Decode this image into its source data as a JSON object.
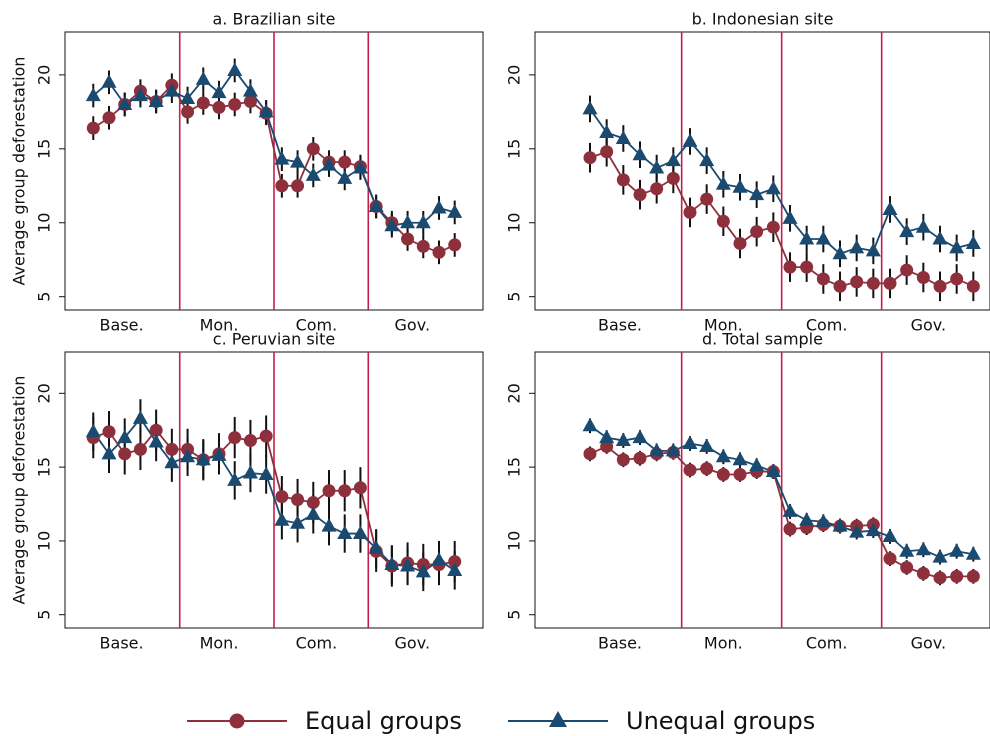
{
  "chart_data": [
    {
      "type": "line",
      "title": "a. Brazilian site",
      "ylabel": "Average group deforestation",
      "x": [
        1,
        2,
        3,
        4,
        5,
        6,
        7,
        8,
        9,
        10,
        11,
        12,
        13,
        14,
        15,
        16,
        17,
        18,
        19,
        20,
        21,
        22,
        23,
        24
      ],
      "xlim": [
        -0.8,
        25.8
      ],
      "xticks": [
        {
          "value": 2.8,
          "label": "Base."
        },
        {
          "value": 9,
          "label": "Mon."
        },
        {
          "value": 15.2,
          "label": "Com."
        },
        {
          "value": 21.3,
          "label": "Gov."
        }
      ],
      "ylim": [
        4.1,
        22.9
      ],
      "yticks": [
        5,
        10,
        15,
        20
      ],
      "vlines": [
        6.5,
        12.5,
        18.5
      ],
      "vline_color": "#c41e4a",
      "series": [
        {
          "name": "Equal groups",
          "color": "#8e2f3c",
          "marker": "circle",
          "error": 0.8,
          "values": [
            16.4,
            17.1,
            18.0,
            18.9,
            18.2,
            19.3,
            17.5,
            18.1,
            17.8,
            18.0,
            18.2,
            17.4,
            12.5,
            12.5,
            15.0,
            14.1,
            14.1,
            13.8,
            11.1,
            10.0,
            8.9,
            8.4,
            8.0,
            8.5
          ]
        },
        {
          "name": "Unequal groups",
          "color": "#1b4a70",
          "marker": "triangle",
          "error": 0.8,
          "values": [
            18.6,
            19.5,
            18.0,
            18.6,
            18.2,
            18.9,
            18.4,
            19.7,
            18.8,
            20.3,
            18.9,
            17.5,
            14.3,
            14.1,
            13.2,
            13.9,
            13.0,
            13.7,
            11.1,
            9.8,
            10.0,
            10.0,
            11.0,
            10.7
          ]
        }
      ]
    },
    {
      "type": "line",
      "title": "b. Indonesian site",
      "x": [
        1,
        2,
        3,
        4,
        5,
        6,
        7,
        8,
        9,
        10,
        11,
        12,
        13,
        14,
        15,
        16,
        17,
        18,
        19,
        20,
        21,
        22,
        23,
        24
      ],
      "xlim": [
        -2.3,
        25.0
      ],
      "xticks": [
        {
          "value": 2.8,
          "label": "Base."
        },
        {
          "value": 9,
          "label": "Mon."
        },
        {
          "value": 15.2,
          "label": "Com."
        },
        {
          "value": 21.3,
          "label": "Gov."
        }
      ],
      "ylim": [
        4.1,
        22.9
      ],
      "yticks": [
        5,
        10,
        15,
        20
      ],
      "vlines": [
        6.5,
        12.5,
        18.5
      ],
      "vline_color": "#c41e4a",
      "series": [
        {
          "name": "Equal groups",
          "color": "#8e2f3c",
          "marker": "circle",
          "error": 1.0,
          "values": [
            14.4,
            14.8,
            12.9,
            11.9,
            12.3,
            13.0,
            10.7,
            11.6,
            10.1,
            8.6,
            9.4,
            9.7,
            7.0,
            7.0,
            6.2,
            5.7,
            6.0,
            5.9,
            5.9,
            6.8,
            6.3,
            5.7,
            6.2,
            5.7
          ]
        },
        {
          "name": "Unequal groups",
          "color": "#1b4a70",
          "marker": "triangle",
          "error": 0.9,
          "values": [
            17.7,
            16.1,
            15.7,
            14.6,
            13.7,
            14.2,
            15.5,
            14.2,
            12.6,
            12.4,
            11.9,
            12.3,
            10.3,
            8.9,
            8.9,
            7.9,
            8.3,
            8.1,
            10.9,
            9.4,
            9.7,
            8.9,
            8.3,
            8.6
          ]
        }
      ]
    },
    {
      "type": "line",
      "title": "c. Peruvian site",
      "ylabel": "Average group deforestation",
      "x": [
        1,
        2,
        3,
        4,
        5,
        6,
        7,
        8,
        9,
        10,
        11,
        12,
        13,
        14,
        15,
        16,
        17,
        18,
        19,
        20,
        21,
        22,
        23,
        24
      ],
      "xlim": [
        -0.8,
        25.8
      ],
      "xticks": [
        {
          "value": 2.8,
          "label": "Base."
        },
        {
          "value": 9,
          "label": "Mon."
        },
        {
          "value": 15.2,
          "label": "Com."
        },
        {
          "value": 21.3,
          "label": "Gov."
        }
      ],
      "ylim": [
        4.1,
        22.8
      ],
      "yticks": [
        5,
        10,
        15,
        20
      ],
      "vlines": [
        6.5,
        12.5,
        18.5
      ],
      "vline_color": "#c41e4a",
      "series": [
        {
          "name": "Equal groups",
          "color": "#8e2f3c",
          "marker": "circle",
          "error": 1.4,
          "values": [
            17.0,
            17.4,
            15.9,
            16.2,
            17.5,
            16.2,
            16.2,
            15.5,
            15.9,
            17.0,
            16.8,
            17.1,
            13.0,
            12.8,
            12.6,
            13.4,
            13.4,
            13.6,
            9.3,
            8.3,
            8.5,
            8.4,
            8.4,
            8.6
          ]
        },
        {
          "name": "Unequal groups",
          "color": "#1b4a70",
          "marker": "triangle",
          "error": 1.3,
          "values": [
            17.4,
            15.9,
            17.0,
            18.3,
            16.7,
            15.3,
            15.7,
            15.5,
            15.8,
            14.1,
            14.6,
            14.5,
            11.4,
            11.2,
            11.8,
            11.0,
            10.5,
            10.5,
            9.5,
            8.4,
            8.3,
            7.9,
            8.7,
            8.0
          ]
        }
      ]
    },
    {
      "type": "line",
      "title": "d. Total sample",
      "x": [
        1,
        2,
        3,
        4,
        5,
        6,
        7,
        8,
        9,
        10,
        11,
        12,
        13,
        14,
        15,
        16,
        17,
        18,
        19,
        20,
        21,
        22,
        23,
        24
      ],
      "xlim": [
        -2.3,
        25.0
      ],
      "xticks": [
        {
          "value": 2.8,
          "label": "Base."
        },
        {
          "value": 9,
          "label": "Mon."
        },
        {
          "value": 15.2,
          "label": "Com."
        },
        {
          "value": 21.3,
          "label": "Gov."
        }
      ],
      "ylim": [
        4.1,
        22.8
      ],
      "yticks": [
        5,
        10,
        15,
        20
      ],
      "vlines": [
        6.5,
        12.5,
        18.5
      ],
      "vline_color": "#c41e4a",
      "series": [
        {
          "name": "Equal groups",
          "color": "#8e2f3c",
          "marker": "circle",
          "error": 0.5,
          "values": [
            15.9,
            16.4,
            15.5,
            15.6,
            15.9,
            16.0,
            14.8,
            14.9,
            14.5,
            14.5,
            14.7,
            14.7,
            10.8,
            10.9,
            11.1,
            11.0,
            11.0,
            11.1,
            8.8,
            8.2,
            7.8,
            7.5,
            7.6,
            7.6
          ]
        },
        {
          "name": "Unequal groups",
          "color": "#1b4a70",
          "marker": "triangle",
          "error": 0.5,
          "values": [
            17.8,
            17.0,
            16.8,
            17.0,
            16.1,
            16.1,
            16.6,
            16.4,
            15.7,
            15.5,
            15.1,
            14.7,
            12.0,
            11.4,
            11.3,
            11.0,
            10.6,
            10.7,
            10.3,
            9.3,
            9.4,
            8.9,
            9.3,
            9.1
          ]
        }
      ]
    }
  ]
}
